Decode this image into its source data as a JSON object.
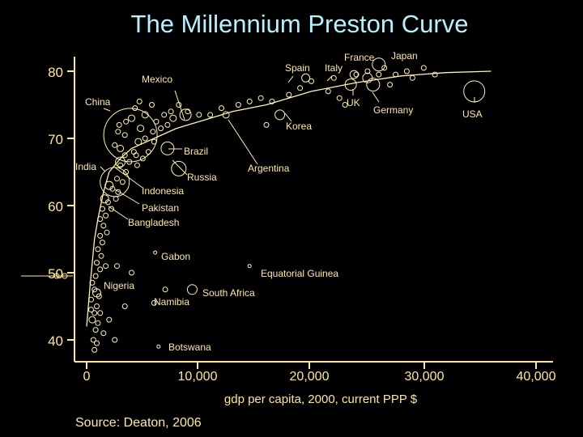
{
  "page": {
    "title": "The Millennium Preston Curve",
    "source": "Source: Deaton, 2006"
  },
  "colors": {
    "background": "#000000",
    "title": "#b8f0ff",
    "axis": "#ffe69a",
    "text": "#ffe9a8",
    "points": "#fff2b8"
  },
  "chart_data": {
    "type": "scatter",
    "title": "The Millennium Preston Curve",
    "xlabel": "gdp per capita, 2000, current PPP $",
    "ylabel": "",
    "xlim": [
      0,
      40000
    ],
    "ylim": [
      37,
      82
    ],
    "x_ticks": [
      0,
      10000,
      20000,
      30000,
      40000
    ],
    "x_tick_labels": [
      "0",
      "10,000",
      "20,000",
      "30,000",
      "40,000"
    ],
    "y_ticks": [
      40,
      50,
      60,
      70,
      80
    ],
    "y_tick_labels": [
      "40",
      "50",
      "60",
      "70",
      "80"
    ],
    "grid": false,
    "curve": [
      [
        0,
        42
      ],
      [
        300,
        48
      ],
      [
        700,
        55
      ],
      [
        1000,
        58
      ],
      [
        1500,
        62
      ],
      [
        2000,
        65
      ],
      [
        3000,
        67
      ],
      [
        4000,
        68.5
      ],
      [
        6000,
        70
      ],
      [
        8000,
        71.5
      ],
      [
        10000,
        72.5
      ],
      [
        13000,
        74
      ],
      [
        16000,
        75
      ],
      [
        20000,
        77
      ],
      [
        24000,
        78.3
      ],
      [
        28000,
        79.3
      ],
      [
        32000,
        79.8
      ],
      [
        36000,
        80
      ]
    ],
    "labeled_points": [
      {
        "name": "China",
        "x": 3900,
        "y": 70.5
      },
      {
        "name": "India",
        "x": 2500,
        "y": 63.5
      },
      {
        "name": "Indonesia",
        "x": 3000,
        "y": 66.5
      },
      {
        "name": "Pakistan",
        "x": 2000,
        "y": 63
      },
      {
        "name": "Bangladesh",
        "x": 1600,
        "y": 61
      },
      {
        "name": "Mexico",
        "x": 8800,
        "y": 73.5
      },
      {
        "name": "Brazil",
        "x": 7200,
        "y": 68.5
      },
      {
        "name": "Russia",
        "x": 8200,
        "y": 65.5
      },
      {
        "name": "Argentina",
        "x": 12400,
        "y": 73.5
      },
      {
        "name": "Korea",
        "x": 17200,
        "y": 73.5
      },
      {
        "name": "Spain",
        "x": 19500,
        "y": 79
      },
      {
        "name": "Italy",
        "x": 23800,
        "y": 79.5
      },
      {
        "name": "France",
        "x": 25000,
        "y": 79
      },
      {
        "name": "Japan",
        "x": 26000,
        "y": 81
      },
      {
        "name": "UK",
        "x": 23500,
        "y": 78
      },
      {
        "name": "Germany",
        "x": 25500,
        "y": 78
      },
      {
        "name": "USA",
        "x": 34500,
        "y": 77
      },
      {
        "name": "Gabon",
        "x": 6100,
        "y": 53
      },
      {
        "name": "Equatorial Guinea",
        "x": 14500,
        "y": 51
      },
      {
        "name": "Nigeria",
        "x": 900,
        "y": 47
      },
      {
        "name": "Namibia",
        "x": 6000,
        "y": 45.5
      },
      {
        "name": "South Africa",
        "x": 9400,
        "y": 47.5
      },
      {
        "name": "Botswana",
        "x": 6400,
        "y": 39
      }
    ],
    "points": [
      {
        "x": 600,
        "y": 40,
        "s": 3
      },
      {
        "x": 800,
        "y": 41.5,
        "s": 3
      },
      {
        "x": 500,
        "y": 43,
        "s": 4
      },
      {
        "x": 1000,
        "y": 42.5,
        "s": 3
      },
      {
        "x": 700,
        "y": 44,
        "s": 3
      },
      {
        "x": 900,
        "y": 45,
        "s": 3
      },
      {
        "x": 400,
        "y": 46,
        "s": 3
      },
      {
        "x": 1100,
        "y": 46.5,
        "s": 3
      },
      {
        "x": 700,
        "y": 47.5,
        "s": 3
      },
      {
        "x": 500,
        "y": 48.5,
        "s": 3
      },
      {
        "x": 800,
        "y": 49.5,
        "s": 3
      },
      {
        "x": 1200,
        "y": 50.5,
        "s": 3
      },
      {
        "x": 900,
        "y": 51.5,
        "s": 3
      },
      {
        "x": 1300,
        "y": 52.5,
        "s": 3
      },
      {
        "x": 1000,
        "y": 53.5,
        "s": 3
      },
      {
        "x": 1400,
        "y": 54.5,
        "s": 3
      },
      {
        "x": 1200,
        "y": 55.5,
        "s": 3
      },
      {
        "x": 1800,
        "y": 56,
        "s": 3
      },
      {
        "x": 1500,
        "y": 57,
        "s": 3
      },
      {
        "x": 1200,
        "y": 58,
        "s": 3
      },
      {
        "x": 1700,
        "y": 58.5,
        "s": 3
      },
      {
        "x": 2200,
        "y": 59.5,
        "s": 3
      },
      {
        "x": 1400,
        "y": 59.5,
        "s": 3
      },
      {
        "x": 1900,
        "y": 60.5,
        "s": 3
      },
      {
        "x": 2600,
        "y": 61,
        "s": 3
      },
      {
        "x": 1500,
        "y": 41,
        "s": 3
      },
      {
        "x": 2000,
        "y": 43,
        "s": 3
      },
      {
        "x": 700,
        "y": 38.5,
        "s": 3
      },
      {
        "x": 900,
        "y": 39.5,
        "s": 3
      },
      {
        "x": 2500,
        "y": 40,
        "s": 3
      },
      {
        "x": 400,
        "y": 44.5,
        "s": 3
      },
      {
        "x": 2300,
        "y": 62.5,
        "s": 3
      },
      {
        "x": 2800,
        "y": 62,
        "s": 3
      },
      {
        "x": 3200,
        "y": 63.5,
        "s": 3
      },
      {
        "x": 2700,
        "y": 64,
        "s": 3
      },
      {
        "x": 3500,
        "y": 65,
        "s": 3
      },
      {
        "x": 3000,
        "y": 66,
        "s": 3
      },
      {
        "x": 3800,
        "y": 66.5,
        "s": 3
      },
      {
        "x": 4500,
        "y": 66,
        "s": 3
      },
      {
        "x": 5000,
        "y": 67,
        "s": 3
      },
      {
        "x": 4200,
        "y": 68,
        "s": 3
      },
      {
        "x": 5500,
        "y": 68,
        "s": 3
      },
      {
        "x": 3000,
        "y": 68.5,
        "s": 4
      },
      {
        "x": 2500,
        "y": 69,
        "s": 3
      },
      {
        "x": 4600,
        "y": 69.5,
        "s": 4
      },
      {
        "x": 5200,
        "y": 70,
        "s": 3
      },
      {
        "x": 6000,
        "y": 69.5,
        "s": 3
      },
      {
        "x": 3400,
        "y": 70.5,
        "s": 3
      },
      {
        "x": 2800,
        "y": 71,
        "s": 3
      },
      {
        "x": 4800,
        "y": 71.5,
        "s": 4
      },
      {
        "x": 5900,
        "y": 71,
        "s": 3
      },
      {
        "x": 6600,
        "y": 71.5,
        "s": 3
      },
      {
        "x": 2900,
        "y": 72,
        "s": 3
      },
      {
        "x": 3500,
        "y": 72.5,
        "s": 3
      },
      {
        "x": 4000,
        "y": 73,
        "s": 4
      },
      {
        "x": 5200,
        "y": 73.5,
        "s": 4
      },
      {
        "x": 6200,
        "y": 72.5,
        "s": 3
      },
      {
        "x": 7200,
        "y": 72,
        "s": 3
      },
      {
        "x": 6900,
        "y": 73.5,
        "s": 3
      },
      {
        "x": 4300,
        "y": 74.5,
        "s": 3
      },
      {
        "x": 5800,
        "y": 75,
        "s": 3
      },
      {
        "x": 4700,
        "y": 75.5,
        "s": 3
      },
      {
        "x": 7500,
        "y": 74,
        "s": 3
      },
      {
        "x": 7700,
        "y": 73,
        "s": 4
      },
      {
        "x": 8200,
        "y": 75,
        "s": 3
      },
      {
        "x": 9000,
        "y": 74,
        "s": 3
      },
      {
        "x": 10000,
        "y": 73.5,
        "s": 3
      },
      {
        "x": 11000,
        "y": 73.5,
        "s": 3
      },
      {
        "x": 12000,
        "y": 74.5,
        "s": 3
      },
      {
        "x": 13500,
        "y": 75,
        "s": 3
      },
      {
        "x": 14500,
        "y": 75.5,
        "s": 3
      },
      {
        "x": 15500,
        "y": 76,
        "s": 3
      },
      {
        "x": 16500,
        "y": 75.5,
        "s": 3
      },
      {
        "x": 18000,
        "y": 76.5,
        "s": 3
      },
      {
        "x": 19000,
        "y": 77.5,
        "s": 3
      },
      {
        "x": 20000,
        "y": 78.5,
        "s": 3
      },
      {
        "x": 21500,
        "y": 77,
        "s": 3
      },
      {
        "x": 22000,
        "y": 79,
        "s": 3
      },
      {
        "x": 24000,
        "y": 79.5,
        "s": 3
      },
      {
        "x": 25000,
        "y": 80,
        "s": 3
      },
      {
        "x": 26500,
        "y": 80.5,
        "s": 3
      },
      {
        "x": 27500,
        "y": 79.5,
        "s": 3
      },
      {
        "x": 28500,
        "y": 80,
        "s": 3
      },
      {
        "x": 29000,
        "y": 79,
        "s": 3
      },
      {
        "x": 30000,
        "y": 80.5,
        "s": 3
      },
      {
        "x": 31000,
        "y": 79.5,
        "s": 3
      },
      {
        "x": 26000,
        "y": 79.5,
        "s": 3
      },
      {
        "x": 27000,
        "y": 78,
        "s": 3
      },
      {
        "x": 22500,
        "y": 76,
        "s": 3
      },
      {
        "x": 23000,
        "y": 75,
        "s": 3
      },
      {
        "x": 16000,
        "y": 72,
        "s": 3
      },
      {
        "x": 3400,
        "y": 67.5,
        "s": 3
      },
      {
        "x": 4400,
        "y": 67.5,
        "s": 3
      },
      {
        "x": 1700,
        "y": 51,
        "s": 3
      },
      {
        "x": 2700,
        "y": 51,
        "s": 3
      },
      {
        "x": 4000,
        "y": 50,
        "s": 3
      },
      {
        "x": 7000,
        "y": 47.5,
        "s": 3
      },
      {
        "x": 3400,
        "y": 45,
        "s": 3
      },
      {
        "x": 1200,
        "y": 44,
        "s": 3
      }
    ]
  }
}
